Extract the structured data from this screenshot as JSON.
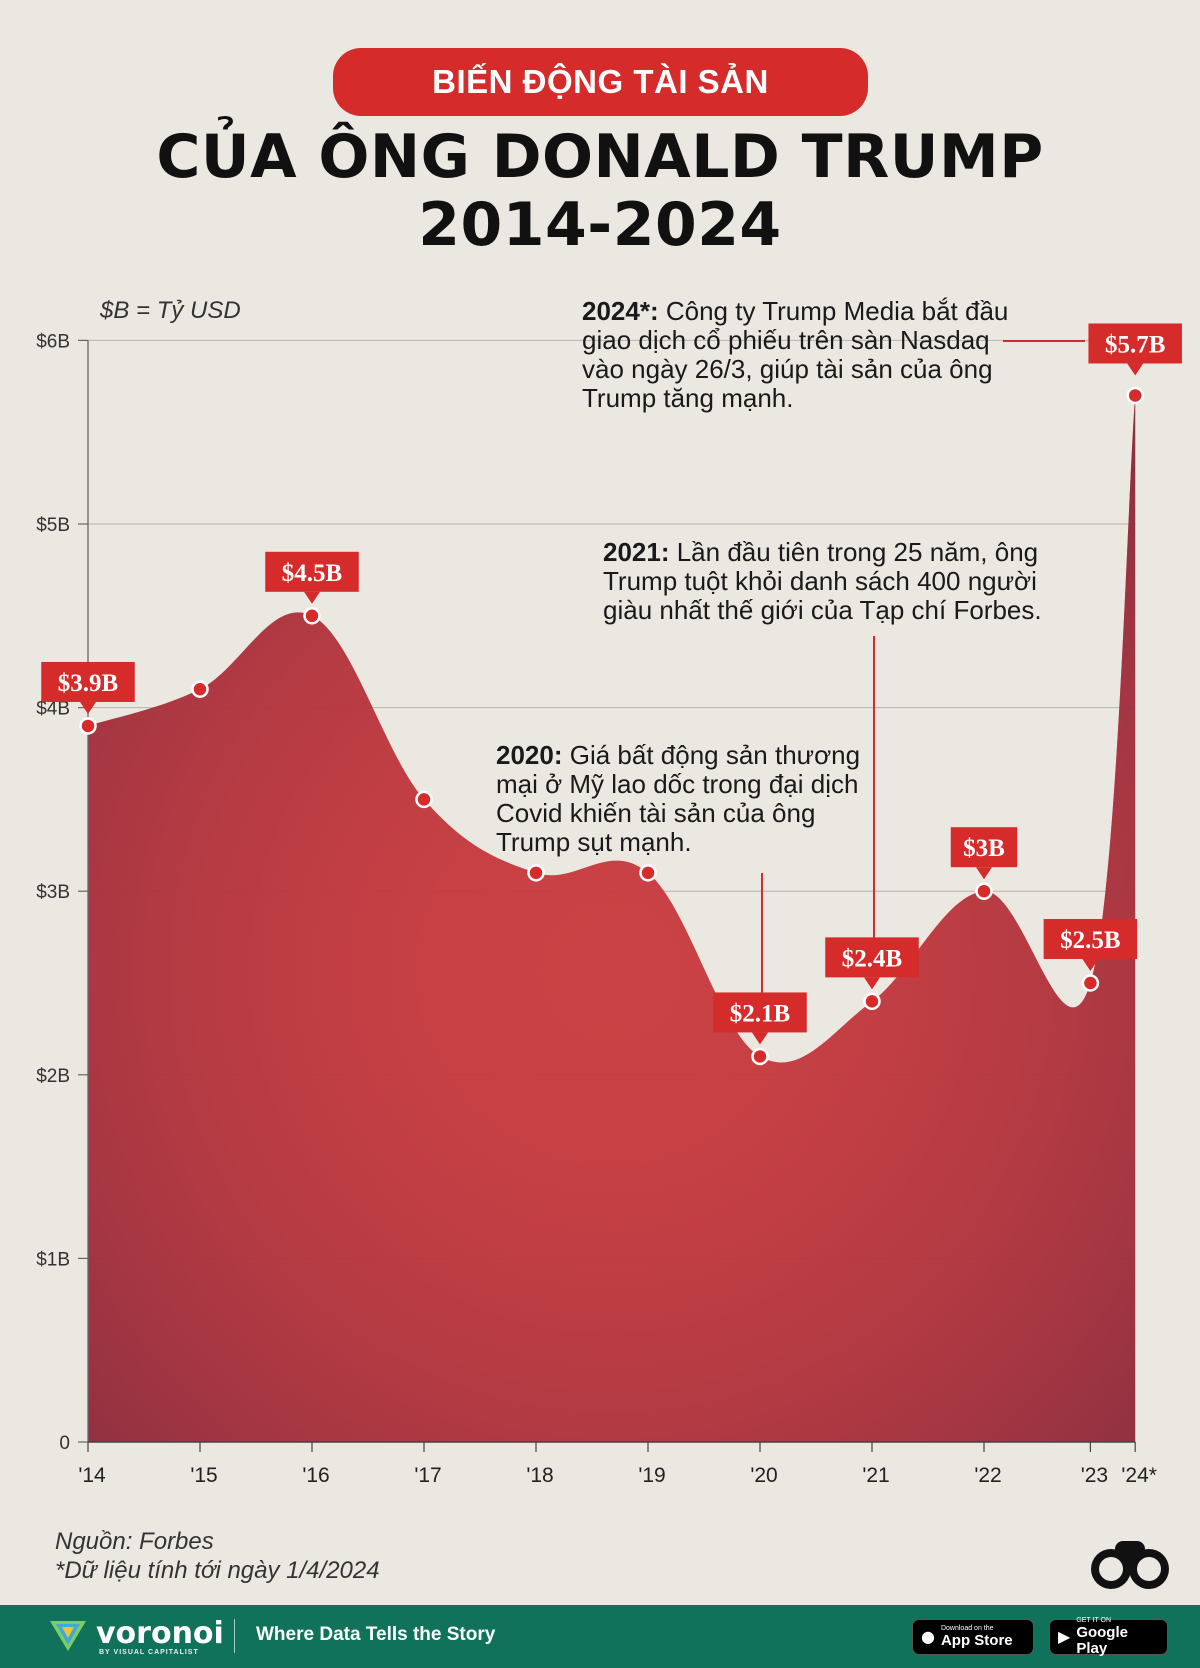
{
  "header": {
    "pill": "BIẾN ĐỘNG TÀI SẢN",
    "title_line1": "CỦA ÔNG DONALD TRUMP",
    "title_line2": "2014-2024"
  },
  "unit_note": "$B = Tỷ USD",
  "annotations": {
    "y2024": {
      "year": "2024*:",
      "text": " Công ty Trump Media bắt đầu giao dịch cổ phiếu trên sàn Nasdaq vào ngày 26/3, giúp tài sản của ông Trump tăng mạnh."
    },
    "y2021": {
      "year": "2021:",
      "text": " Lần đầu tiên trong 25 năm, ông Trump tuột khỏi danh sách 400 người giàu nhất thế giới của Tạp chí Forbes."
    },
    "y2020": {
      "year": "2020:",
      "text": " Giá bất động sản thương mại ở Mỹ lao dốc trong đại dịch Covid khiến tài sản của ông Trump sụt mạnh."
    }
  },
  "source": {
    "line1": "Nguồn: Forbes",
    "line2": "*Dữ liệu tính tới ngày 1/4/2024"
  },
  "footer": {
    "brand": "voronoi",
    "brand_sub": "BY VISUAL CAPITALIST",
    "tagline": "Where Data Tells the Story",
    "appstore_small": "Download on the",
    "appstore_big": "App Store",
    "googleplay_small": "GET IT ON",
    "googleplay_big": "Google Play"
  },
  "colors": {
    "accent": "#d52b2b",
    "area": "#c8393c",
    "footer": "#11725c",
    "background": "#ebe7e1"
  },
  "icons": [
    "apple-icon",
    "google-play-icon",
    "voronoi-logo-icon",
    "binoculars-icon"
  ],
  "chart_data": {
    "type": "area",
    "title": "BIẾN ĐỘNG TÀI SẢN CỦA ÔNG DONALD TRUMP 2014-2024",
    "xlabel": "",
    "ylabel": "",
    "ylim": [
      0,
      6
    ],
    "grid": true,
    "x_ticks": [
      "'14",
      "'15",
      "'16",
      "'17",
      "'18",
      "'19",
      "'20",
      "'21",
      "'22",
      "'23",
      "'24*"
    ],
    "y_ticks": [
      "0",
      "$1B",
      "$2B",
      "$3B",
      "$4B",
      "$5B",
      "$6B"
    ],
    "x": [
      2014,
      2015,
      2016,
      2017,
      2018,
      2019,
      2020,
      2021,
      2022,
      2022.95,
      2023.35
    ],
    "values": [
      3.9,
      4.1,
      4.5,
      3.5,
      3.1,
      3.1,
      2.1,
      2.4,
      3.0,
      2.5,
      5.7
    ],
    "labeled_points": [
      {
        "index": 0,
        "label": "$3.9B"
      },
      {
        "index": 2,
        "label": "$4.5B"
      },
      {
        "index": 6,
        "label": "$2.1B"
      },
      {
        "index": 7,
        "label": "$2.4B"
      },
      {
        "index": 8,
        "label": "$3B"
      },
      {
        "index": 9,
        "label": "$2.5B"
      },
      {
        "index": 10,
        "label": "$5.7B"
      }
    ]
  }
}
